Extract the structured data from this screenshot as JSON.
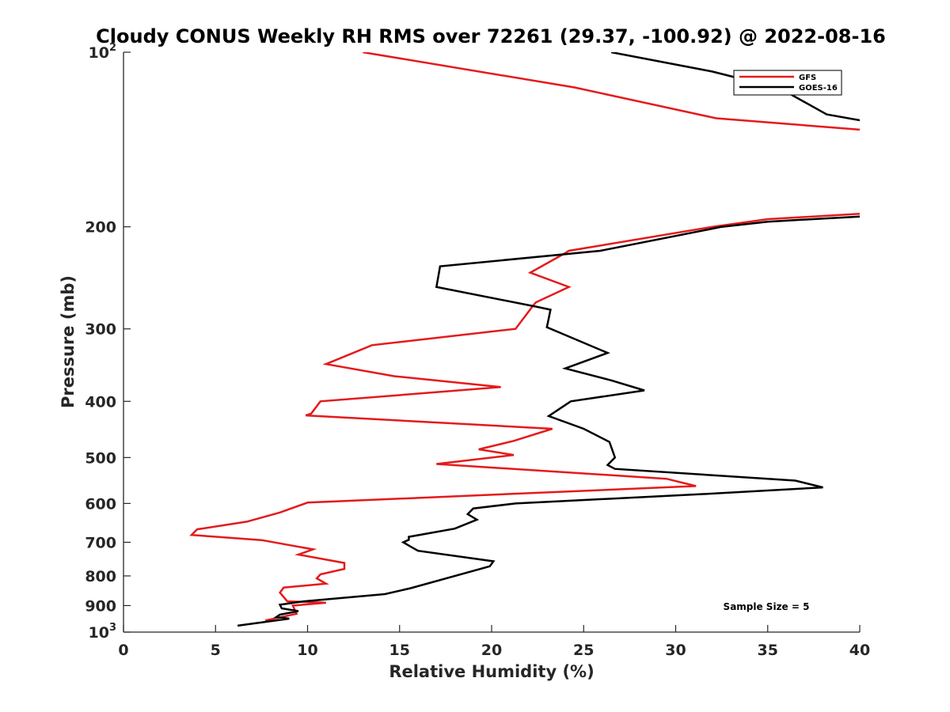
{
  "chart_data": {
    "type": "line",
    "title": "Cloudy CONUS Weekly RH RMS over 72261 (29.37, -100.92) @ 2022-08-16",
    "xlabel": "Relative Humidity (%)",
    "ylabel": "Pressure (mb)",
    "xlim": [
      0,
      40
    ],
    "ylim": [
      100,
      1000
    ],
    "yscale": "log",
    "y_reversed": true,
    "grid": false,
    "legend_position": "top-right",
    "annotation": "Sample Size = 5",
    "x_ticks": [
      "0",
      "5",
      "10",
      "15",
      "20",
      "25",
      "30",
      "35",
      "40"
    ],
    "y_ticks": [
      {
        "value": 100,
        "base": "10",
        "exp": "2"
      },
      {
        "value": 200,
        "label": "200"
      },
      {
        "value": 300,
        "label": "300"
      },
      {
        "value": 400,
        "label": "400"
      },
      {
        "value": 500,
        "label": "500"
      },
      {
        "value": 600,
        "label": "600"
      },
      {
        "value": 700,
        "label": "700"
      },
      {
        "value": 800,
        "label": "800"
      },
      {
        "value": 900,
        "label": "900"
      },
      {
        "value": 1000,
        "base": "10",
        "exp": "3"
      }
    ],
    "series": [
      {
        "name": "GFS",
        "color": "#e41a1c",
        "points": [
          [
            13.0,
            100
          ],
          [
            24.5,
            115
          ],
          [
            32.2,
            130
          ],
          [
            40.0,
            136
          ],
          null,
          [
            40.0,
            190
          ],
          [
            35.0,
            194
          ],
          [
            32.0,
            200
          ],
          [
            24.2,
            220
          ],
          [
            24.0,
            222
          ],
          [
            22.1,
            240
          ],
          [
            24.2,
            254
          ],
          [
            22.4,
            270
          ],
          [
            22.2,
            275
          ],
          [
            21.3,
            300
          ],
          [
            13.5,
            320
          ],
          [
            11.0,
            345
          ],
          [
            14.7,
            362
          ],
          [
            20.5,
            378
          ],
          [
            10.7,
            400
          ],
          [
            10.2,
            420
          ],
          [
            9.9,
            423
          ],
          [
            23.3,
            446
          ],
          [
            21.2,
            468
          ],
          [
            19.3,
            484
          ],
          [
            21.2,
            495
          ],
          [
            17.0,
            513
          ],
          [
            29.5,
            544
          ],
          [
            31.1,
            560
          ],
          [
            10.0,
            598
          ],
          [
            8.5,
            622
          ],
          [
            6.7,
            645
          ],
          [
            4.0,
            665
          ],
          [
            3.7,
            680
          ],
          [
            7.5,
            694
          ],
          [
            10.3,
            720
          ],
          [
            9.5,
            735
          ],
          [
            12.0,
            760
          ],
          [
            12.0,
            778
          ],
          [
            10.7,
            795
          ],
          [
            10.5,
            808
          ],
          [
            11.0,
            825
          ],
          [
            8.7,
            838
          ],
          [
            8.5,
            855
          ],
          [
            8.9,
            885
          ],
          [
            11.0,
            890
          ],
          [
            9.2,
            900
          ],
          [
            9.4,
            930
          ],
          [
            7.7,
            955
          ]
        ]
      },
      {
        "name": "GOES-16",
        "color": "#000000",
        "points": [
          [
            26.5,
            100
          ],
          [
            32.0,
            108
          ],
          [
            35.4,
            115
          ],
          [
            36.0,
            117
          ],
          [
            38.2,
            128
          ],
          [
            40.0,
            131
          ],
          null,
          [
            40.0,
            192
          ],
          [
            35.0,
            196
          ],
          [
            32.5,
            200
          ],
          [
            25.9,
            220
          ],
          [
            17.2,
            234
          ],
          [
            17.0,
            254
          ],
          [
            22.5,
            275
          ],
          [
            23.2,
            278
          ],
          [
            23.0,
            298
          ],
          [
            26.3,
            330
          ],
          [
            24.0,
            351
          ],
          [
            26.5,
            368
          ],
          [
            28.3,
            383
          ],
          [
            24.3,
            400
          ],
          [
            23.1,
            424
          ],
          [
            25.0,
            446
          ],
          [
            26.4,
            470
          ],
          [
            26.7,
            500
          ],
          [
            26.3,
            515
          ],
          [
            26.7,
            523
          ],
          [
            36.5,
            548
          ],
          [
            38.0,
            563
          ],
          [
            31.5,
            578
          ],
          [
            21.3,
            600
          ],
          [
            19.0,
            612
          ],
          [
            18.7,
            626
          ],
          [
            19.2,
            640
          ],
          [
            18.0,
            663
          ],
          [
            15.5,
            685
          ],
          [
            15.5,
            693
          ],
          [
            15.2,
            700
          ],
          [
            15.6,
            712
          ],
          [
            16.0,
            724
          ],
          [
            20.1,
            755
          ],
          [
            19.9,
            770
          ],
          [
            15.6,
            840
          ],
          [
            14.2,
            860
          ],
          [
            9.8,
            885
          ],
          [
            8.5,
            897
          ],
          [
            8.6,
            910
          ],
          [
            9.5,
            920
          ],
          [
            8.5,
            933
          ],
          [
            8.3,
            942
          ],
          [
            9.0,
            948
          ],
          [
            6.2,
            975
          ]
        ]
      }
    ]
  }
}
